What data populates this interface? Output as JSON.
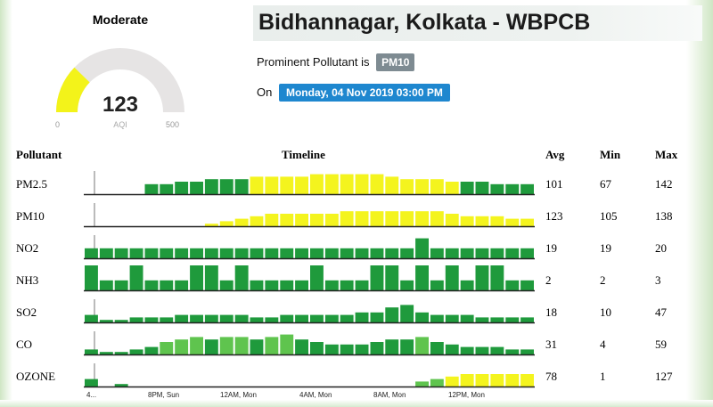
{
  "gauge": {
    "category": "Moderate",
    "value": "123",
    "unit": "AQI",
    "min": "0",
    "max": "500",
    "fraction": 0.246,
    "fill_color": "#f3f31a",
    "track_color": "#e6e4e4"
  },
  "header": {
    "title": "Bidhannagar, Kolkata - WBPCB",
    "prominent_label": "Prominent Pollutant is",
    "prominent_value": "PM10",
    "on_label": "On",
    "datetime": "Monday, 04 Nov 2019 03:00 PM"
  },
  "table": {
    "headers": {
      "pollutant": "Pollutant",
      "timeline": "Timeline",
      "avg": "Avg",
      "min": "Min",
      "max": "Max"
    },
    "x_ticks": [
      "4...",
      "8PM, Sun",
      "12AM, Mon",
      "4AM, Mon",
      "8AM, Mon",
      "12PM, Mon"
    ],
    "colors": {
      "dark_green": "#1f9a3c",
      "light_green": "#5fc44e",
      "yellow": "#f4f41e"
    },
    "rows": [
      {
        "name": "PM2.5",
        "avg": "101",
        "min": "67",
        "max": "142",
        "bars": [
          0,
          0,
          0,
          0,
          4,
          4,
          5,
          5,
          6,
          6,
          6,
          7,
          7,
          7,
          7,
          8,
          8,
          8,
          8,
          8,
          7,
          6,
          6,
          6,
          5,
          5,
          5,
          4,
          4,
          4
        ],
        "colors": [
          "d",
          "d",
          "d",
          "d",
          "d",
          "d",
          "d",
          "d",
          "d",
          "d",
          "d",
          "y",
          "y",
          "y",
          "y",
          "y",
          "y",
          "y",
          "y",
          "y",
          "y",
          "y",
          "y",
          "y",
          "y",
          "d",
          "d",
          "d",
          "d",
          "d"
        ]
      },
      {
        "name": "PM10",
        "avg": "123",
        "min": "105",
        "max": "138",
        "bars": [
          0,
          0,
          0,
          0,
          0,
          0,
          0,
          0,
          1,
          2,
          3,
          4,
          5,
          5,
          5,
          5,
          5,
          6,
          6,
          6,
          6,
          6,
          6,
          6,
          5,
          4,
          4,
          4,
          3,
          3
        ],
        "colors": [
          "y",
          "y",
          "y",
          "y",
          "y",
          "y",
          "y",
          "y",
          "y",
          "y",
          "y",
          "y",
          "y",
          "y",
          "y",
          "y",
          "y",
          "y",
          "y",
          "y",
          "y",
          "y",
          "y",
          "y",
          "y",
          "y",
          "y",
          "y",
          "y",
          "y"
        ]
      },
      {
        "name": "NO2",
        "avg": "19",
        "min": "19",
        "max": "20",
        "bars": [
          4,
          4,
          4,
          4,
          4,
          4,
          4,
          4,
          4,
          4,
          4,
          4,
          4,
          4,
          4,
          4,
          4,
          4,
          4,
          4,
          4,
          4,
          8,
          4,
          4,
          4,
          4,
          4,
          4,
          4
        ],
        "colors": [
          "d",
          "d",
          "d",
          "d",
          "d",
          "d",
          "d",
          "d",
          "d",
          "d",
          "d",
          "d",
          "d",
          "d",
          "d",
          "d",
          "d",
          "d",
          "d",
          "d",
          "d",
          "d",
          "d",
          "d",
          "d",
          "d",
          "d",
          "d",
          "d",
          "d"
        ]
      },
      {
        "name": "NH3",
        "avg": "2",
        "min": "2",
        "max": "3",
        "bars": [
          10,
          4,
          4,
          10,
          4,
          4,
          4,
          10,
          10,
          4,
          10,
          4,
          4,
          4,
          4,
          10,
          4,
          4,
          4,
          10,
          10,
          4,
          10,
          4,
          10,
          4,
          10,
          10,
          4,
          4
        ],
        "colors": [
          "d",
          "d",
          "d",
          "d",
          "d",
          "d",
          "d",
          "d",
          "d",
          "d",
          "d",
          "d",
          "d",
          "d",
          "d",
          "d",
          "d",
          "d",
          "d",
          "d",
          "d",
          "d",
          "d",
          "d",
          "d",
          "d",
          "d",
          "d",
          "d",
          "d"
        ]
      },
      {
        "name": "SO2",
        "avg": "18",
        "min": "10",
        "max": "47",
        "bars": [
          3,
          1,
          1,
          2,
          2,
          2,
          3,
          3,
          3,
          3,
          3,
          2,
          2,
          3,
          3,
          3,
          3,
          3,
          4,
          4,
          6,
          7,
          4,
          3,
          3,
          3,
          2,
          2,
          2,
          2
        ],
        "colors": [
          "d",
          "d",
          "d",
          "d",
          "d",
          "d",
          "d",
          "d",
          "d",
          "d",
          "d",
          "d",
          "d",
          "d",
          "d",
          "d",
          "d",
          "d",
          "d",
          "d",
          "d",
          "d",
          "d",
          "d",
          "d",
          "d",
          "d",
          "d",
          "d",
          "d"
        ]
      },
      {
        "name": "CO",
        "avg": "31",
        "min": "4",
        "max": "59",
        "bars": [
          2,
          1,
          1,
          2,
          3,
          5,
          6,
          7,
          6,
          7,
          7,
          6,
          7,
          8,
          6,
          5,
          4,
          4,
          4,
          5,
          6,
          6,
          7,
          5,
          4,
          3,
          3,
          3,
          2,
          2
        ],
        "colors": [
          "d",
          "d",
          "d",
          "d",
          "d",
          "l",
          "l",
          "l",
          "d",
          "l",
          "l",
          "d",
          "l",
          "l",
          "d",
          "d",
          "d",
          "d",
          "d",
          "d",
          "d",
          "d",
          "l",
          "d",
          "d",
          "d",
          "d",
          "d",
          "d",
          "d"
        ]
      },
      {
        "name": "OZONE",
        "avg": "78",
        "min": "1",
        "max": "127",
        "bars": [
          3,
          0,
          1,
          0,
          0,
          0,
          0,
          0,
          0,
          0,
          0,
          0,
          0,
          0,
          0,
          0,
          0,
          0,
          0,
          0,
          0,
          0,
          2,
          3,
          4,
          5,
          5,
          5,
          5,
          5
        ],
        "colors": [
          "d",
          "d",
          "d",
          "d",
          "d",
          "d",
          "d",
          "d",
          "d",
          "d",
          "d",
          "d",
          "d",
          "d",
          "d",
          "d",
          "d",
          "d",
          "d",
          "d",
          "d",
          "d",
          "l",
          "l",
          "y",
          "y",
          "y",
          "y",
          "y",
          "y"
        ]
      }
    ]
  }
}
